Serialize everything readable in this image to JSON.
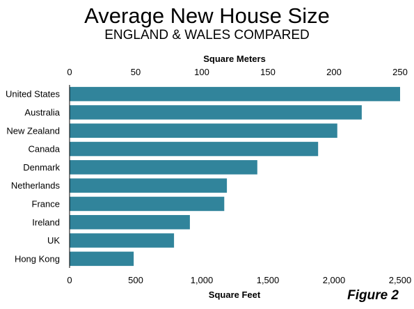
{
  "header": {
    "title": "Average New House Size",
    "subtitle": "ENGLAND  & WALES COMPARED"
  },
  "figure_label": "Figure 2",
  "chart_data": {
    "type": "bar",
    "orientation": "horizontal",
    "title": "Average New House Size",
    "subtitle": "ENGLAND  & WALES COMPARED",
    "categories": [
      "United States",
      "Australia",
      "New Zealand",
      "Canada",
      "Denmark",
      "Netherlands",
      "France",
      "Ireland",
      "UK",
      "Hong Kong"
    ],
    "values": [
      2500,
      2210,
      2025,
      1880,
      1420,
      1190,
      1170,
      910,
      790,
      485
    ],
    "value_unit": "Square Feet",
    "xlabel": "Square Feet",
    "xlim": [
      0,
      2500
    ],
    "xticks": [
      0,
      500,
      1000,
      1500,
      2000,
      2500
    ],
    "xtick_labels": [
      "0",
      "500",
      "1,000",
      "1,500",
      "2,000",
      "2,500"
    ],
    "x2label": "Square Meters",
    "x2lim": [
      0,
      250
    ],
    "x2ticks": [
      0,
      50,
      100,
      150,
      200,
      250
    ],
    "x2tick_labels": [
      "0",
      "50",
      "100",
      "150",
      "200",
      "250"
    ],
    "bar_color": "#31849B",
    "grid": false,
    "legend": "none"
  }
}
